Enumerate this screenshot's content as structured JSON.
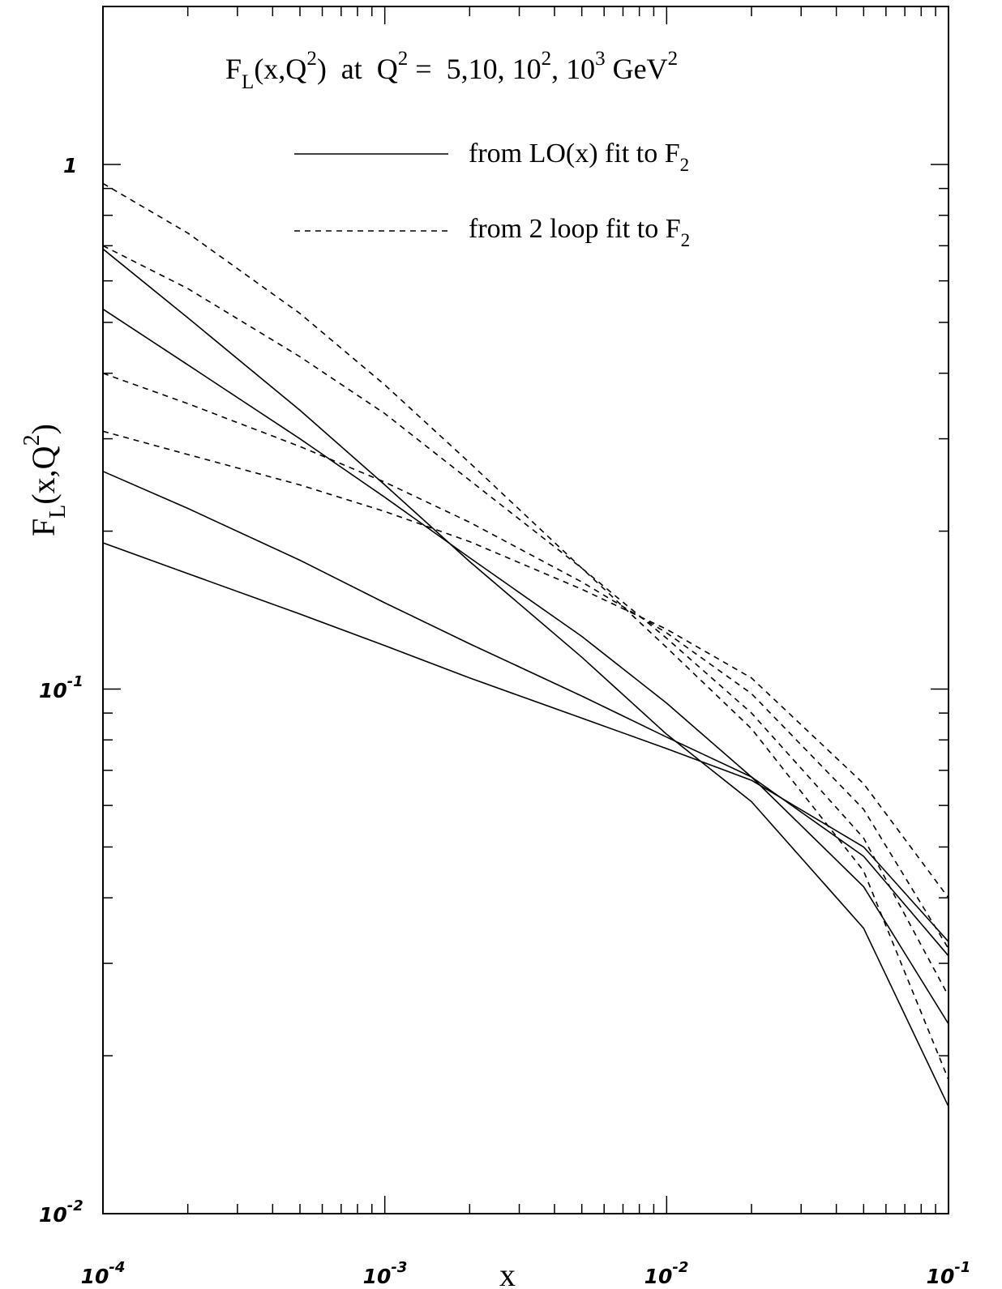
{
  "chart_data": {
    "type": "line",
    "title": {
      "main": "F",
      "main_sub": "L",
      "args": "(x,Q",
      "args_sup": "2",
      "args_close": ")  at  Q",
      "q_sup": "2",
      "values": " =  5,10, 10",
      "v_sup1": "2",
      "v_mid": ", 10",
      "v_sup2": "3",
      "unit": " GeV",
      "unit_sup": "2"
    },
    "xlabel": "x",
    "ylabel": {
      "main": "F",
      "sub": "L",
      "rest": "(x,Q",
      "sup": "2",
      "close": ")"
    },
    "x_scale": "log",
    "y_scale": "log",
    "xlim": [
      0.0001,
      0.1
    ],
    "ylim": [
      0.01,
      1.6
    ],
    "x_ticks": [
      {
        "value": 0.0001,
        "base": "10",
        "exp": "-4"
      },
      {
        "value": 0.001,
        "base": "10",
        "exp": "-3"
      },
      {
        "value": 0.01,
        "base": "10",
        "exp": "-2"
      },
      {
        "value": 0.1,
        "base": "10",
        "exp": "-1"
      }
    ],
    "y_ticks": [
      {
        "value": 0.01,
        "base": "10",
        "exp": "-2"
      },
      {
        "value": 0.1,
        "base": "10",
        "exp": "-1"
      },
      {
        "value": 1,
        "base": "1",
        "exp": ""
      }
    ],
    "grid": false,
    "legend": {
      "placement": "top-center",
      "entries": [
        {
          "text": "from LO(x) fit to F",
          "sub": "2",
          "style": "solid"
        },
        {
          "text": "from 2 loop fit to F",
          "sub": "2",
          "style": "dashed"
        }
      ]
    },
    "x": [
      0.0001,
      0.0002,
      0.0005,
      0.001,
      0.002,
      0.005,
      0.01,
      0.02,
      0.05,
      0.1
    ],
    "series": [
      {
        "style": "solid",
        "values": [
          0.19,
          0.166,
          0.139,
          0.121,
          0.105,
          0.088,
          0.077,
          0.067,
          0.05,
          0.033
        ]
      },
      {
        "style": "solid",
        "values": [
          0.26,
          0.221,
          0.176,
          0.146,
          0.122,
          0.097,
          0.081,
          0.068,
          0.048,
          0.031
        ]
      },
      {
        "style": "solid",
        "values": [
          0.53,
          0.415,
          0.3,
          0.232,
          0.178,
          0.126,
          0.094,
          0.068,
          0.042,
          0.023
        ]
      },
      {
        "style": "solid",
        "values": [
          0.69,
          0.51,
          0.34,
          0.245,
          0.175,
          0.115,
          0.082,
          0.061,
          0.035,
          0.016
        ]
      },
      {
        "style": "dashed",
        "values": [
          0.31,
          0.28,
          0.245,
          0.218,
          0.191,
          0.155,
          0.13,
          0.105,
          0.066,
          0.04
        ]
      },
      {
        "style": "dashed",
        "values": [
          0.4,
          0.35,
          0.29,
          0.248,
          0.208,
          0.16,
          0.128,
          0.098,
          0.059,
          0.032
        ]
      },
      {
        "style": "dashed",
        "values": [
          0.7,
          0.58,
          0.43,
          0.335,
          0.25,
          0.17,
          0.125,
          0.09,
          0.052,
          0.026
        ]
      },
      {
        "style": "dashed",
        "values": [
          0.92,
          0.74,
          0.52,
          0.38,
          0.27,
          0.17,
          0.12,
          0.084,
          0.045,
          0.018
        ]
      }
    ]
  }
}
